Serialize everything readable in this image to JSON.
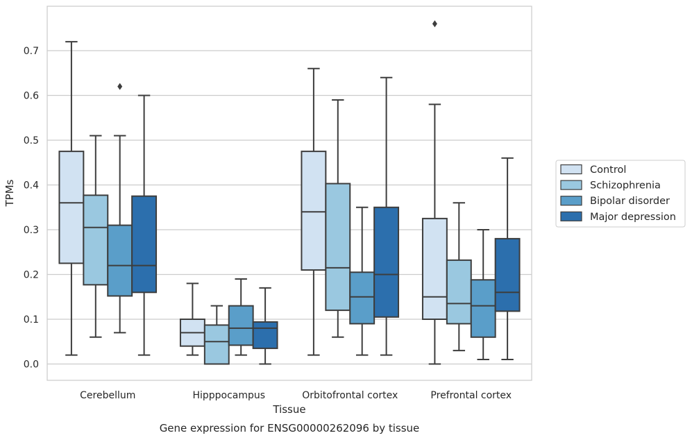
{
  "chart_data": {
    "type": "boxplot",
    "title": "",
    "caption": "Gene expression for ENSG00000262096 by tissue",
    "xlabel": "Tissue",
    "ylabel": "TPMs",
    "ylim": [
      -0.036,
      0.8
    ],
    "yticks": [
      0.0,
      0.1,
      0.2,
      0.3,
      0.4,
      0.5,
      0.6,
      0.7
    ],
    "ytick_labels": [
      "0.0",
      "0.1",
      "0.2",
      "0.3",
      "0.4",
      "0.5",
      "0.6",
      "0.7"
    ],
    "grid": "horizontal",
    "legend_position": "outside-right",
    "categories": [
      "Cerebellum",
      "Hipppocampus",
      "Orbitofrontal cortex",
      "Prefrontal cortex"
    ],
    "series": [
      {
        "name": "Control",
        "color": "#d1e2f2",
        "boxes": [
          {
            "whisker_low": 0.02,
            "q1": 0.225,
            "median": 0.36,
            "q3": 0.475,
            "whisker_high": 0.72,
            "outliers": []
          },
          {
            "whisker_low": 0.02,
            "q1": 0.04,
            "median": 0.07,
            "q3": 0.1,
            "whisker_high": 0.18,
            "outliers": []
          },
          {
            "whisker_low": 0.02,
            "q1": 0.21,
            "median": 0.34,
            "q3": 0.475,
            "whisker_high": 0.66,
            "outliers": []
          },
          {
            "whisker_low": 0.0,
            "q1": 0.1,
            "median": 0.15,
            "q3": 0.325,
            "whisker_high": 0.58,
            "outliers": [
              0.76
            ]
          }
        ]
      },
      {
        "name": "Schizophrenia",
        "color": "#9ac8e0",
        "boxes": [
          {
            "whisker_low": 0.06,
            "q1": 0.177,
            "median": 0.305,
            "q3": 0.377,
            "whisker_high": 0.51,
            "outliers": []
          },
          {
            "whisker_low": 0.0,
            "q1": 0.0,
            "median": 0.05,
            "q3": 0.087,
            "whisker_high": 0.13,
            "outliers": []
          },
          {
            "whisker_low": 0.06,
            "q1": 0.12,
            "median": 0.215,
            "q3": 0.403,
            "whisker_high": 0.59,
            "outliers": []
          },
          {
            "whisker_low": 0.03,
            "q1": 0.09,
            "median": 0.135,
            "q3": 0.232,
            "whisker_high": 0.36,
            "outliers": []
          }
        ]
      },
      {
        "name": "Bipolar disorder",
        "color": "#5a9ec9",
        "boxes": [
          {
            "whisker_low": 0.07,
            "q1": 0.152,
            "median": 0.22,
            "q3": 0.31,
            "whisker_high": 0.51,
            "outliers": [
              0.62
            ]
          },
          {
            "whisker_low": 0.02,
            "q1": 0.042,
            "median": 0.08,
            "q3": 0.13,
            "whisker_high": 0.19,
            "outliers": []
          },
          {
            "whisker_low": 0.02,
            "q1": 0.09,
            "median": 0.15,
            "q3": 0.205,
            "whisker_high": 0.35,
            "outliers": []
          },
          {
            "whisker_low": 0.01,
            "q1": 0.06,
            "median": 0.13,
            "q3": 0.188,
            "whisker_high": 0.3,
            "outliers": []
          }
        ]
      },
      {
        "name": "Major depression",
        "color": "#2c6fad",
        "boxes": [
          {
            "whisker_low": 0.02,
            "q1": 0.16,
            "median": 0.22,
            "q3": 0.375,
            "whisker_high": 0.6,
            "outliers": []
          },
          {
            "whisker_low": 0.0,
            "q1": 0.035,
            "median": 0.08,
            "q3": 0.094,
            "whisker_high": 0.17,
            "outliers": []
          },
          {
            "whisker_low": 0.02,
            "q1": 0.105,
            "median": 0.2,
            "q3": 0.35,
            "whisker_high": 0.64,
            "outliers": []
          },
          {
            "whisker_low": 0.01,
            "q1": 0.118,
            "median": 0.16,
            "q3": 0.28,
            "whisker_high": 0.46,
            "outliers": []
          }
        ]
      }
    ]
  }
}
